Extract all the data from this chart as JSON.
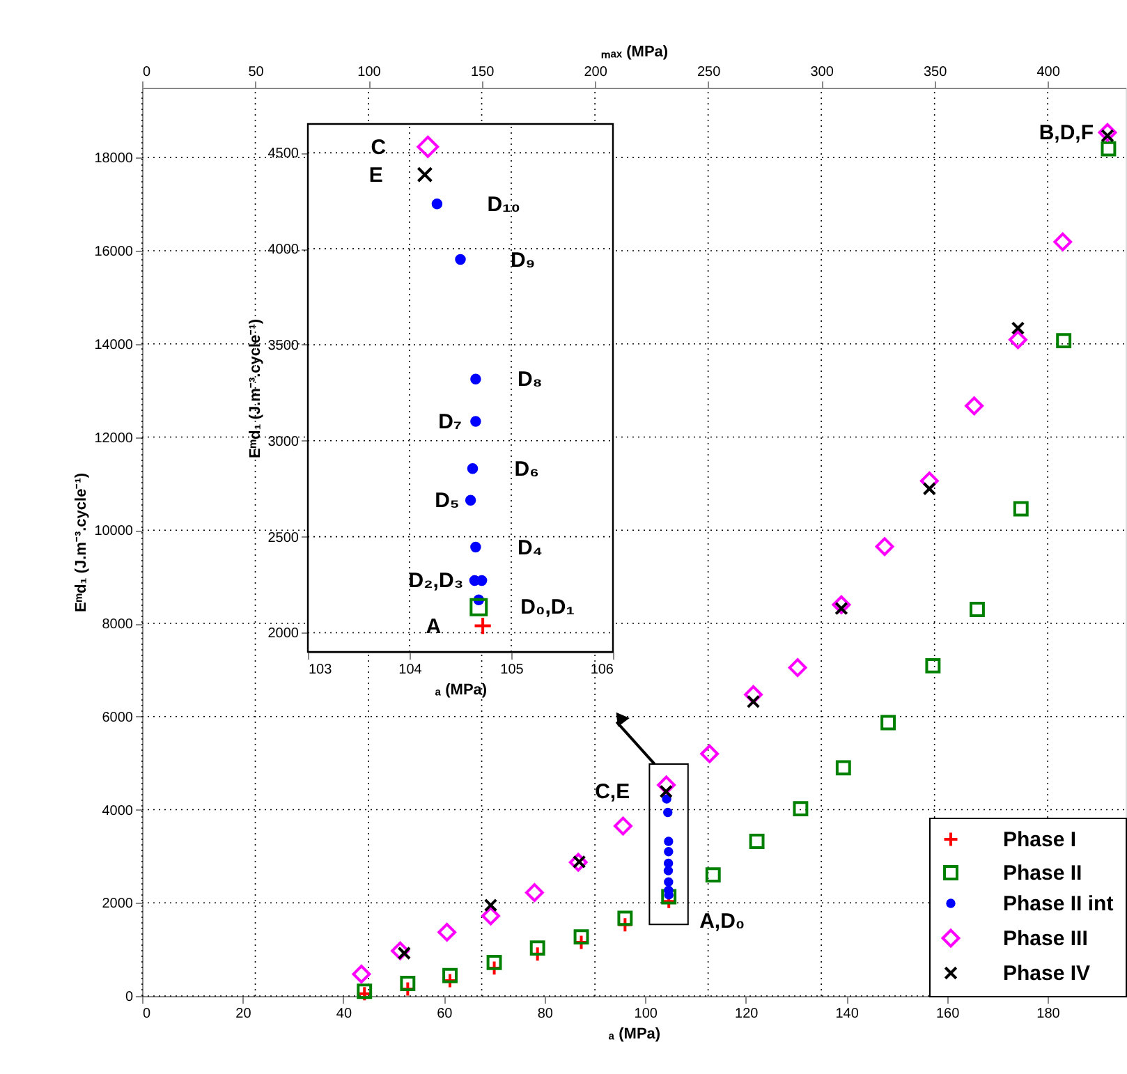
{
  "chart_data": [
    {
      "type": "scatter",
      "xlabel": "ₐ (MPa)",
      "x2label": "ₘₐₓ (MPa)",
      "ylabel": "Eᵐd₁ (J.m⁻³.cycle⁻¹)",
      "xlim": [
        0,
        195.5
      ],
      "xticks": [
        0,
        20,
        40,
        60,
        80,
        100,
        120,
        140,
        160,
        180
      ],
      "x2lim": [
        0,
        434.4
      ],
      "x2ticks": [
        0,
        50,
        100,
        150,
        200,
        250,
        300,
        350,
        400
      ],
      "ylim": [
        0,
        19500
      ],
      "yticks": [
        0,
        2000,
        4000,
        6000,
        8000,
        10000,
        12000,
        14000,
        16000,
        18000
      ],
      "grid": true,
      "legend": "bottom right",
      "series": [
        {
          "name": "Phase I",
          "color": "#ff0000",
          "marker": "plus",
          "x": [
            44.2,
            52.8,
            61.2,
            70.0,
            78.6,
            87.3,
            96.0,
            104.7
          ],
          "values": [
            50,
            150,
            330,
            600,
            900,
            1150,
            1530,
            2030
          ]
        },
        {
          "name": "Phase II",
          "color": "#008000",
          "marker": "square",
          "x": [
            44.2,
            52.8,
            61.2,
            70.0,
            78.6,
            87.3,
            96.0,
            104.7,
            113.5,
            122.2,
            130.9,
            139.4,
            148.3,
            157.2,
            166.0,
            174.7,
            183.2,
            192.1
          ],
          "values": [
            100,
            270,
            440,
            720,
            1030,
            1270,
            1670,
            2130,
            2600,
            3320,
            4020,
            4900,
            5870,
            7090,
            8300,
            10460,
            14070,
            18190
          ]
        },
        {
          "name": "Phase II int",
          "color": "#0000ff",
          "marker": "circle",
          "x": [
            104.7,
            104.65,
            104.65,
            104.6,
            104.62,
            104.65,
            104.65,
            104.5,
            104.27
          ],
          "values": [
            2170,
            2270,
            2450,
            2690,
            2850,
            3100,
            3320,
            3940,
            4230
          ]
        },
        {
          "name": "Phase III",
          "color": "#ff00ff",
          "marker": "diamond",
          "x": [
            43.6,
            51.3,
            60.6,
            69.3,
            78.0,
            86.7,
            95.6,
            104.2,
            112.8,
            121.5,
            130.3,
            139.0,
            147.6,
            156.5,
            165.4,
            174.1,
            183.0,
            191.9
          ],
          "values": [
            470,
            970,
            1370,
            1720,
            2220,
            2870,
            3650,
            4530,
            5200,
            6470,
            7050,
            8400,
            9650,
            11060,
            12670,
            14090,
            16190,
            18540
          ]
        },
        {
          "name": "Phase IV",
          "color": "#000000",
          "marker": "cross",
          "x": [
            52.1,
            69.3,
            86.9,
            104.15,
            121.5,
            139.0,
            156.5,
            174.1,
            191.9
          ],
          "values": [
            920,
            1950,
            2880,
            4390,
            6320,
            8320,
            10890,
            14340,
            18470
          ]
        }
      ],
      "annotations": [
        {
          "text": "C,E",
          "x": 104.15,
          "y": 4390
        },
        {
          "text": "A,D₀",
          "x": 104.7,
          "y": 2030
        },
        {
          "text": "B,D,F",
          "x": 191.9,
          "y": 18540
        }
      ]
    },
    {
      "type": "scatter",
      "xlabel": "ₐ (MPa)",
      "ylabel": "Eᵐd₁ (J.m⁻³.cycle⁻¹)",
      "xlim": [
        103,
        106
      ],
      "xticks": [
        103,
        104,
        105,
        106
      ],
      "ylim": [
        1900,
        4650
      ],
      "yticks": [
        2000,
        2500,
        3000,
        3500,
        4000,
        4500
      ],
      "grid": true,
      "series": [
        {
          "color": "#0000ff",
          "marker": "circle",
          "x": [
            104.68,
            104.64,
            104.71,
            104.65,
            104.6,
            104.62,
            104.65,
            104.65,
            104.5,
            104.27
          ],
          "values": [
            2171,
            2272,
            2272,
            2446,
            2690,
            2855,
            3101,
            3321,
            3944,
            4234
          ]
        },
        {
          "color": "#ff0000",
          "marker": "plus",
          "x": [
            104.72
          ],
          "values": [
            2036
          ]
        },
        {
          "color": "#008000",
          "marker": "square",
          "x": [
            104.68
          ],
          "values": [
            2133
          ]
        },
        {
          "color": "#ff00ff",
          "marker": "diamond",
          "x": [
            104.18
          ],
          "values": [
            4531
          ]
        },
        {
          "color": "#000000",
          "marker": "cross",
          "x": [
            104.15
          ],
          "values": [
            4386
          ]
        }
      ],
      "annotations": [
        {
          "text": "C",
          "x": 104.18,
          "y": 4531
        },
        {
          "text": "E",
          "x": 104.15,
          "y": 4386
        },
        {
          "text": "D₁₀",
          "x": 104.27,
          "y": 4234
        },
        {
          "text": "D₉",
          "x": 104.5,
          "y": 3944
        },
        {
          "text": "D₈",
          "x": 104.65,
          "y": 3321
        },
        {
          "text": "D₇",
          "x": 104.65,
          "y": 3101
        },
        {
          "text": "D₆",
          "x": 104.62,
          "y": 2855
        },
        {
          "text": "D₅",
          "x": 104.6,
          "y": 2690
        },
        {
          "text": "D₄",
          "x": 104.65,
          "y": 2446
        },
        {
          "text": "D₂,D₃",
          "x": 104.64,
          "y": 2272
        },
        {
          "text": "D₀,D₁",
          "x": 104.68,
          "y": 2171
        },
        {
          "text": "A",
          "x": 104.72,
          "y": 2036
        }
      ]
    }
  ]
}
